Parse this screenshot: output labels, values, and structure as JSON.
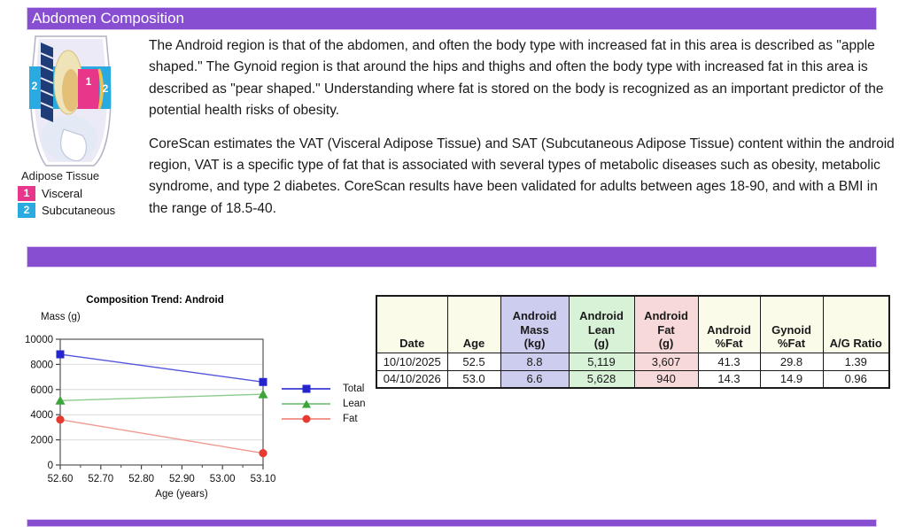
{
  "page": {
    "title": "Abdomen Composition",
    "accent_color": "#874ED1"
  },
  "figure": {
    "caption": "Adipose Tissue",
    "legend": [
      {
        "num": "1",
        "label": "Visceral",
        "color": "#E8378A"
      },
      {
        "num": "2",
        "label": "Subcutaneous",
        "color": "#29ABE2"
      }
    ],
    "region_labels": {
      "visceral": "1",
      "subcutaneous_left": "2",
      "subcutaneous_right": "2"
    }
  },
  "paragraphs": [
    "The Android region is that of the abdomen, and often the body type with increased fat in this area is described as \"apple shaped.\" The Gynoid region is that around the hips and thighs and often the body type with increased fat in this area is described as \"pear shaped.\" Understanding where fat is stored on the body is recognized as an important predictor of the potential health risks of obesity.",
    "CoreScan estimates the VAT (Visceral Adipose Tissue) and SAT (Subcutaneous Adipose Tissue) content within the android region, VAT is a specific type of fat that is associated with several types of metabolic diseases such as obesity, metabolic syndrome, and type 2 diabetes. CoreScan results have been validated for adults between ages 18-90, and with a BMI in the range of 18.5-40."
  ],
  "chart_data": {
    "type": "line",
    "title": "Composition Trend: Android",
    "ylabel": "Mass (g)",
    "xlabel": "Age (years)",
    "ylim": [
      0,
      10000
    ],
    "xlim": [
      52.6,
      53.1
    ],
    "yticks": [
      0,
      2000,
      4000,
      6000,
      8000,
      10000
    ],
    "xticks": [
      52.6,
      52.7,
      52.8,
      52.9,
      53.0,
      53.1
    ],
    "xtick_labels": [
      "52.60",
      "52.70",
      "52.80",
      "52.90",
      "53.00",
      "53.10"
    ],
    "grid": true,
    "legend_position": "right",
    "x": [
      52.6,
      53.1
    ],
    "series": [
      {
        "name": "Total",
        "values": [
          8800,
          6600
        ],
        "marker": "square",
        "line_color": "#5353DC",
        "marker_color": "#2525CD"
      },
      {
        "name": "Lean",
        "values": [
          5119,
          5628
        ],
        "marker": "triangle",
        "line_color": "#8CCB8C",
        "marker_color": "#3BA53B"
      },
      {
        "name": "Fat",
        "values": [
          3607,
          940
        ],
        "marker": "circle",
        "line_color": "#F0998F",
        "marker_color": "#E63A30"
      }
    ]
  },
  "table": {
    "headers": [
      {
        "lines": [
          "Date"
        ],
        "cls": ""
      },
      {
        "lines": [
          "Age"
        ],
        "cls": ""
      },
      {
        "lines": [
          "Android",
          "Mass",
          "(kg)"
        ],
        "cls": "col-mass"
      },
      {
        "lines": [
          "Android",
          "Lean",
          "(g)"
        ],
        "cls": "col-lean"
      },
      {
        "lines": [
          "Android",
          "Fat",
          "(g)"
        ],
        "cls": "col-fat"
      },
      {
        "lines": [
          "Android",
          "%Fat"
        ],
        "cls": ""
      },
      {
        "lines": [
          "Gynoid",
          "%Fat"
        ],
        "cls": ""
      },
      {
        "lines": [
          "A/G Ratio"
        ],
        "cls": ""
      }
    ],
    "col_classes": [
      "",
      "",
      "col-mass",
      "col-lean",
      "col-fat",
      "",
      "",
      ""
    ],
    "rows": [
      [
        "10/10/2025",
        "52.5",
        "8.8",
        "5,119",
        "3,607",
        "41.3",
        "29.8",
        "1.39"
      ],
      [
        "04/10/2026",
        "53.0",
        "6.6",
        "5,628",
        "940",
        "14.3",
        "14.9",
        "0.96"
      ]
    ]
  }
}
